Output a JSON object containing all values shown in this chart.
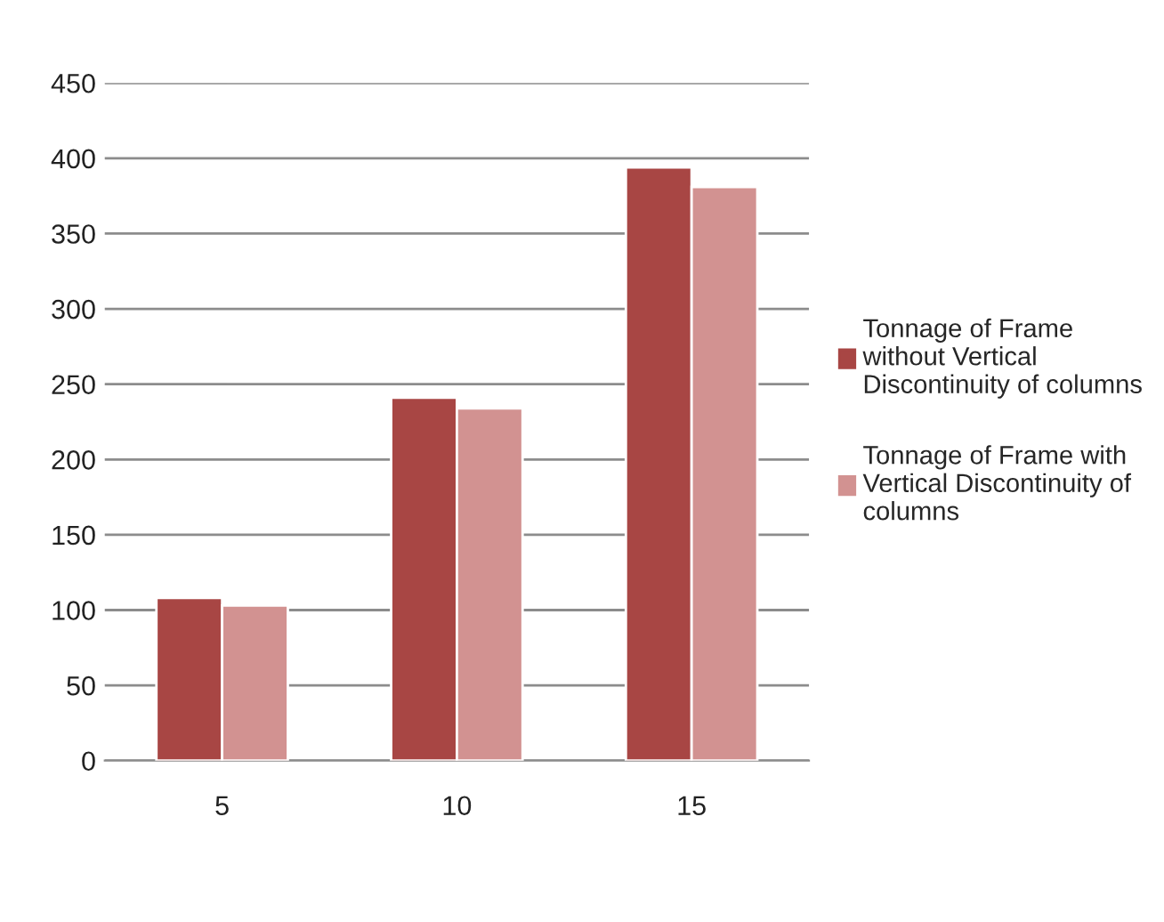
{
  "chart_data": {
    "type": "bar",
    "categories": [
      "5",
      "10",
      "15"
    ],
    "series": [
      {
        "name": "Tonnage of Frame\nwithout Vertical\nDiscontinuity of columns",
        "color": "#a84644",
        "values": [
          108,
          241,
          394
        ]
      },
      {
        "name": "Tonnage of Frame with\nVertical Discontinuity of\ncolumns",
        "color": "#d29291",
        "values": [
          103,
          234,
          381
        ]
      }
    ],
    "ylim": [
      0,
      450
    ],
    "yticks": [
      0,
      50,
      100,
      150,
      200,
      250,
      300,
      350,
      400,
      450
    ],
    "grid": "y",
    "legend": "right"
  }
}
